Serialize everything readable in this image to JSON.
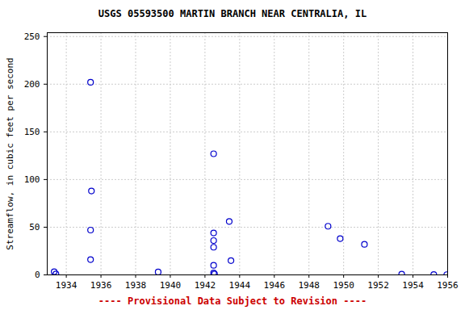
{
  "chart_data": {
    "type": "scatter",
    "title": "USGS 05593500 MARTIN BRANCH NEAR CENTRALIA, IL",
    "y_label": "Streamflow, in cubic feet per second",
    "caption": "---- Provisional Data Subject to Revision ----",
    "x": [
      1933.3,
      1933.4,
      1935.4,
      1935.45,
      1935.4,
      1935.4,
      1939.3,
      1942.5,
      1942.5,
      1942.5,
      1942.5,
      1942.5,
      1942.5,
      1942.55,
      1943.4,
      1943.5,
      1949.1,
      1949.8,
      1951.2,
      1953.35,
      1955.2,
      1955.95
    ],
    "values": [
      3.3,
      1,
      202,
      88,
      47,
      16,
      3,
      127,
      44,
      36,
      29,
      10,
      2,
      1,
      56,
      15,
      51,
      38,
      32,
      0.8,
      0.3,
      0.2
    ],
    "color": "#0000cc",
    "marker": "circle",
    "xlim": [
      1932.9,
      1956
    ],
    "ylim": [
      0,
      254
    ],
    "xticks": [
      1934,
      1936,
      1938,
      1940,
      1942,
      1944,
      1946,
      1948,
      1950,
      1952,
      1954,
      1956
    ],
    "yticks": [
      0,
      50,
      100,
      150,
      200,
      250
    ],
    "grid": true
  }
}
